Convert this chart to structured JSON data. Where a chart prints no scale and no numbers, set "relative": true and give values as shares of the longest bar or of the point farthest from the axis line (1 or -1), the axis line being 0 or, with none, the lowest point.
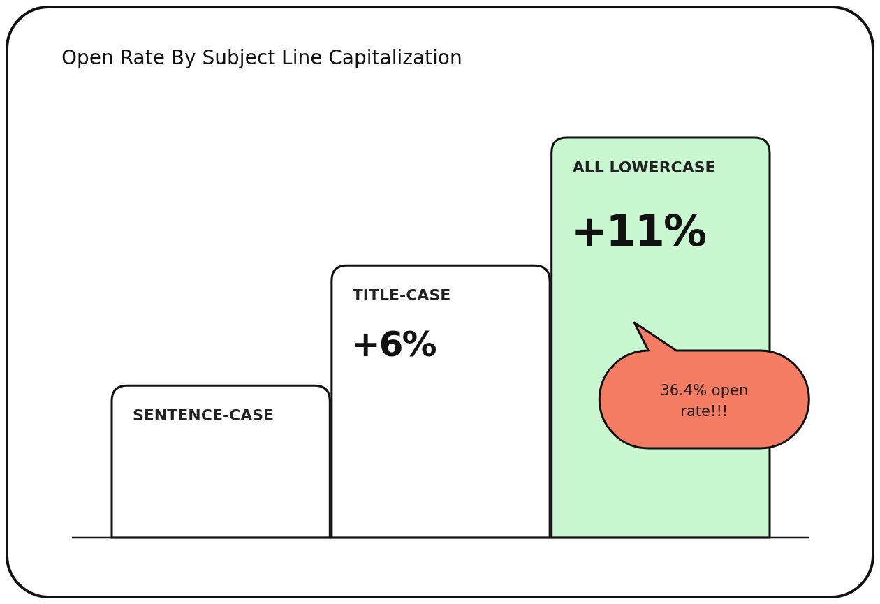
{
  "chart_data": {
    "type": "bar",
    "title": "Open Rate By Subject Line Capitalization",
    "relative": true,
    "categories": [
      "SENTENCE-CASE",
      "TITLE-CASE",
      "ALL LOWERCASE"
    ],
    "values": [
      0.38,
      0.68,
      1
    ],
    "colors": [
      "#ffffff",
      "#ffffff",
      "#c8f7d0"
    ],
    "annotations": [
      {
        "text": "+6%",
        "x": "TITLE-CASE",
        "y": 0.68
      },
      {
        "text": "+11%",
        "x": "ALL LOWERCASE",
        "y": 1
      },
      "36.4% open rate!!!"
    ]
  }
}
